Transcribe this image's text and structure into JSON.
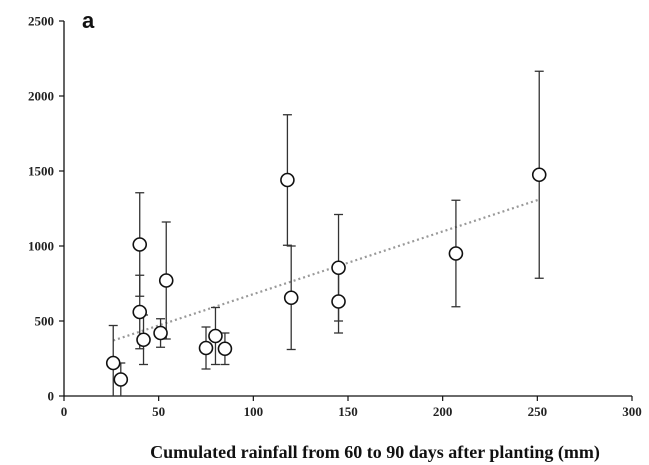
{
  "chart_data": {
    "type": "scatter",
    "panel_label": "a",
    "title": "",
    "xlabel": "Cumulated rainfall  from 60 to 90 days after planting (mm)",
    "ylabel": "",
    "xlim": [
      0,
      300
    ],
    "ylim": [
      0,
      2500
    ],
    "xticks": [
      0,
      50,
      100,
      150,
      200,
      250,
      300
    ],
    "yticks": [
      0,
      500,
      1000,
      1500,
      2000,
      2500
    ],
    "grid": false,
    "legend": "none",
    "colors": {
      "axis": "#111111",
      "marker_edge": "#111111",
      "marker_fill": "#ffffff",
      "errorbar": "#333333",
      "trendline": "#999999"
    },
    "points": [
      {
        "x": 26,
        "y": 220,
        "err": 250
      },
      {
        "x": 30,
        "y": 110,
        "err": 110
      },
      {
        "x": 40,
        "y": 1010,
        "err": 345
      },
      {
        "x": 40,
        "y": 560,
        "err": 245
      },
      {
        "x": 42,
        "y": 375,
        "err": 165
      },
      {
        "x": 51,
        "y": 420,
        "err": 95
      },
      {
        "x": 54,
        "y": 770,
        "err": 390
      },
      {
        "x": 75,
        "y": 320,
        "err": 140
      },
      {
        "x": 80,
        "y": 400,
        "err": 190
      },
      {
        "x": 85,
        "y": 315,
        "err": 105
      },
      {
        "x": 118,
        "y": 1440,
        "err": 435
      },
      {
        "x": 120,
        "y": 655,
        "err": 345
      },
      {
        "x": 145,
        "y": 855,
        "err": 355
      },
      {
        "x": 145,
        "y": 630,
        "err": 210
      },
      {
        "x": 207,
        "y": 950,
        "err": 355
      },
      {
        "x": 251,
        "y": 1475,
        "err": 690
      }
    ],
    "trendline": {
      "style": "dotted",
      "x": [
        26,
        251
      ],
      "y": [
        370,
        1310
      ]
    }
  }
}
